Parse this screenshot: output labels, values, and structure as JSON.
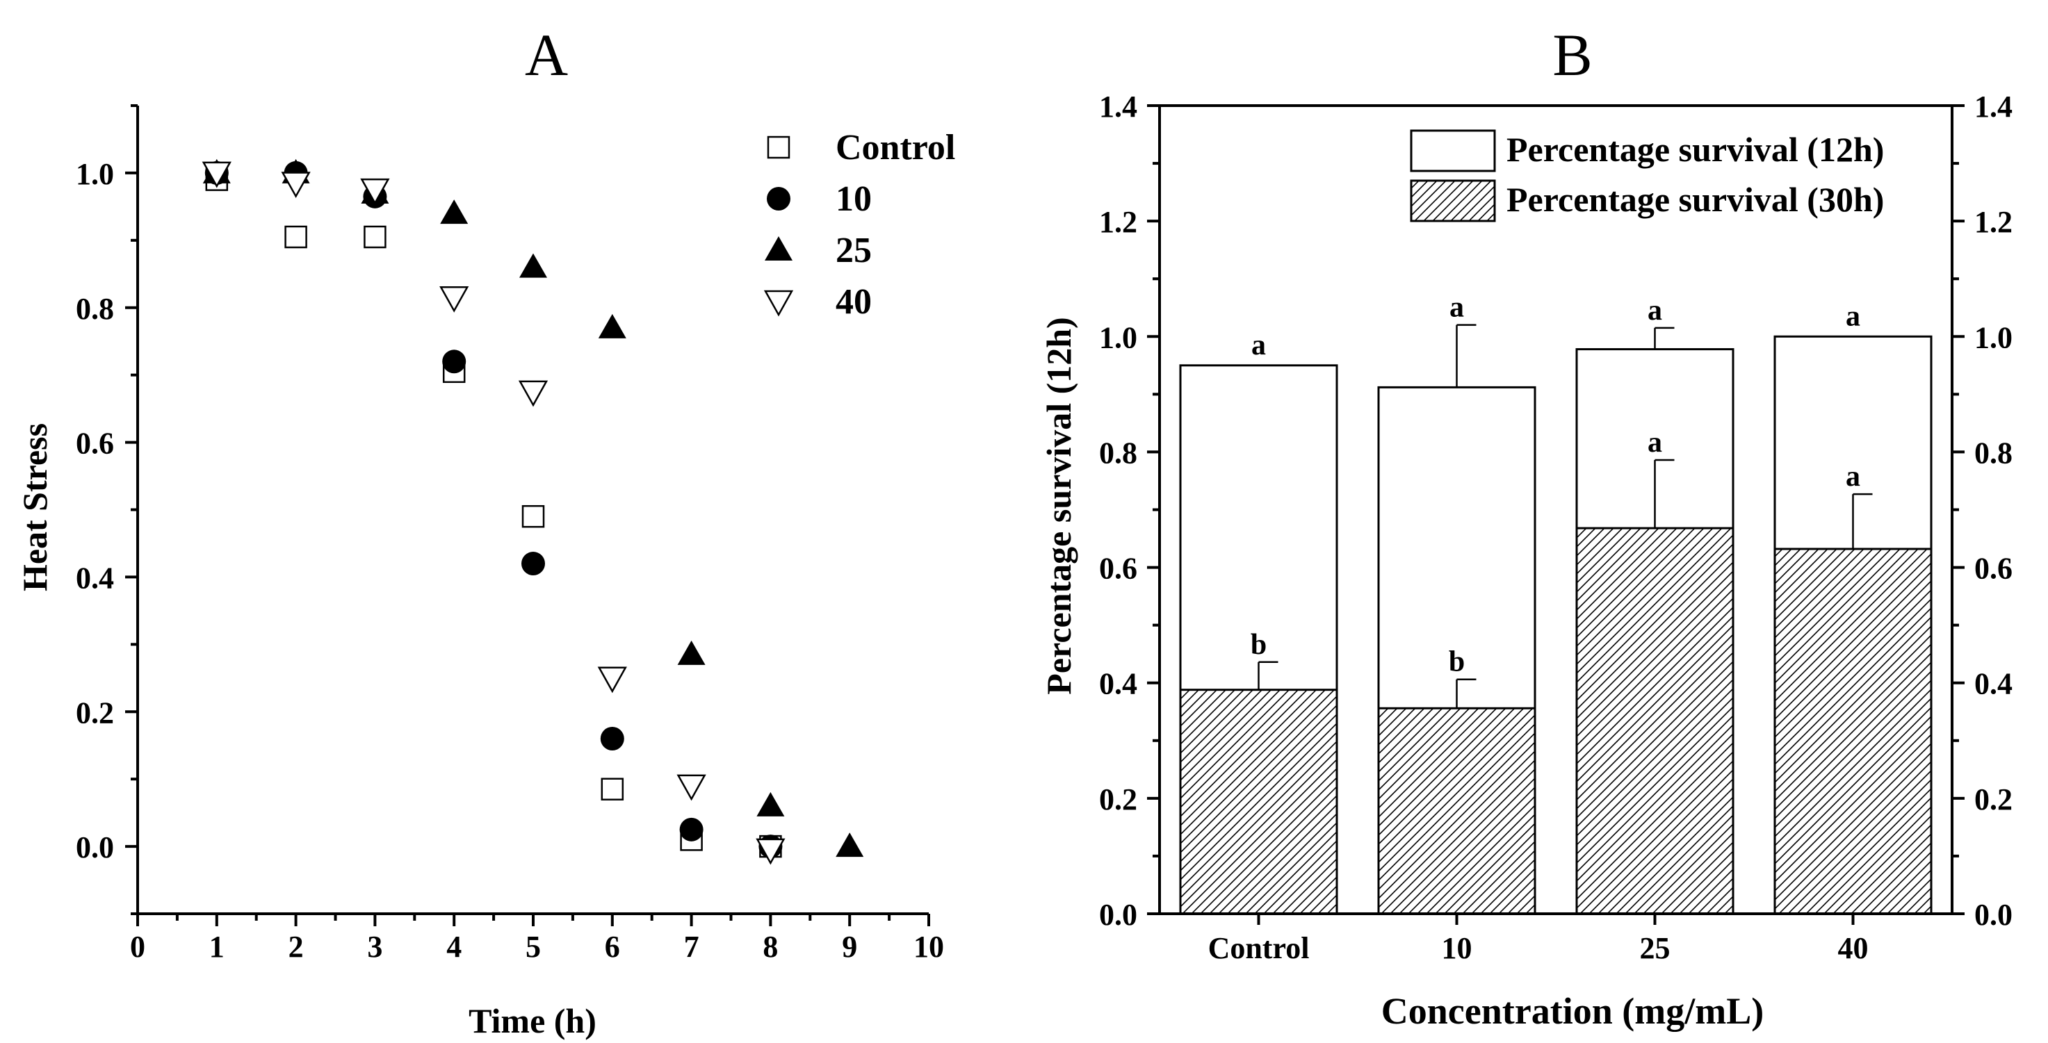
{
  "chart_data": [
    {
      "panel": "A",
      "type": "scatter",
      "title": "A",
      "xlabel": "Time (h)",
      "ylabel": "Heat Stress",
      "xlim": [
        0,
        10
      ],
      "ylim": [
        -0.1,
        1.1
      ],
      "xticks": [
        0,
        1,
        2,
        3,
        4,
        5,
        6,
        7,
        8,
        9,
        10
      ],
      "yticks": [
        0.0,
        0.2,
        0.4,
        0.6,
        0.8,
        1.0
      ],
      "xtick_labels": [
        "0",
        "1",
        "2",
        "3",
        "4",
        "5",
        "6",
        "7",
        "8",
        "9",
        "10"
      ],
      "ytick_labels": [
        "0.0",
        "0.2",
        "0.4",
        "0.6",
        "0.8",
        "1.0"
      ],
      "legend_position": "top-right",
      "series": [
        {
          "name": "Control",
          "marker": "open-square",
          "x": [
            1,
            2,
            3,
            4,
            5,
            6,
            7,
            8
          ],
          "y": [
            0.99,
            0.905,
            0.905,
            0.705,
            0.49,
            0.085,
            0.01,
            0.0
          ]
        },
        {
          "name": "10",
          "marker": "filled-circle",
          "x": [
            1,
            2,
            3,
            4,
            5,
            6,
            7,
            8
          ],
          "y": [
            1.0,
            1.0,
            0.965,
            0.72,
            0.42,
            0.16,
            0.025,
            0.0
          ]
        },
        {
          "name": "25",
          "marker": "filled-triangle-up",
          "x": [
            1,
            2,
            3,
            4,
            5,
            6,
            7,
            8,
            9
          ],
          "y": [
            1.0,
            1.0,
            0.97,
            0.94,
            0.86,
            0.77,
            0.285,
            0.06,
            0.0
          ]
        },
        {
          "name": "40",
          "marker": "open-triangle-down",
          "x": [
            1,
            2,
            3,
            4,
            5,
            6,
            7,
            8
          ],
          "y": [
            1.0,
            0.985,
            0.975,
            0.815,
            0.675,
            0.25,
            0.09,
            -0.005
          ]
        }
      ]
    },
    {
      "panel": "B",
      "type": "bar",
      "title": "B",
      "xlabel": "Concentration (mg/mL)",
      "ylabel": "Percentage survival (12h)",
      "ylim": [
        0,
        1.4
      ],
      "yticks": [
        0.0,
        0.2,
        0.4,
        0.6,
        0.8,
        1.0,
        1.2,
        1.4
      ],
      "ytick_labels": [
        "0.0",
        "0.2",
        "0.4",
        "0.6",
        "0.8",
        "1.0",
        "1.2",
        "1.4"
      ],
      "categories": [
        "Control",
        "10",
        "25",
        "40"
      ],
      "legend_position": "top-right",
      "series": [
        {
          "name": "Percentage survival (12h)",
          "fill": "white",
          "values": [
            0.95,
            0.912,
            0.978,
            1.0
          ],
          "errors": [
            0.0,
            0.108,
            0.037,
            0.0
          ],
          "letters": [
            "a",
            "a",
            "a",
            "a"
          ]
        },
        {
          "name": "Percentage survival (30h)",
          "fill": "hatched",
          "values": [
            0.388,
            0.356,
            0.668,
            0.632
          ],
          "errors": [
            0.048,
            0.05,
            0.118,
            0.095
          ],
          "letters": [
            "b",
            "b",
            "a",
            "a"
          ]
        }
      ]
    }
  ]
}
